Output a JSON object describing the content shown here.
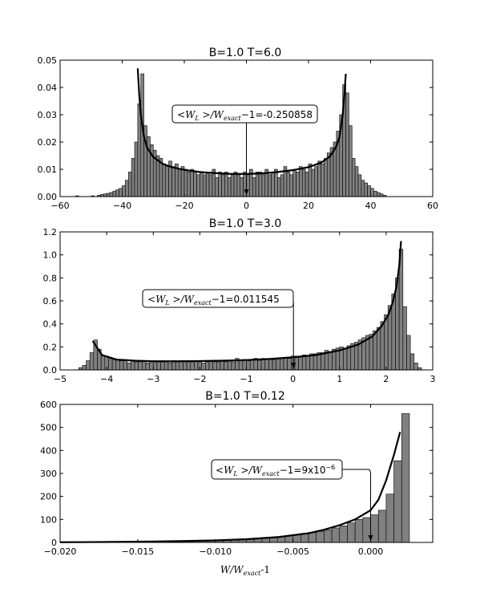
{
  "chart_data": [
    {
      "type": "bar",
      "title": "B=1.0 T=6.0",
      "xlabel": "",
      "ylabel": "",
      "xlim": [
        -60,
        60
      ],
      "ylim": [
        0,
        0.05
      ],
      "xticks": [
        "−60",
        "−40",
        "−20",
        "0",
        "20",
        "40",
        "60"
      ],
      "yticks": [
        "0.00",
        "0.01",
        "0.02",
        "0.03",
        "0.04",
        "0.05"
      ],
      "bin_width": 1.0,
      "bins": [
        [
          -55,
          0.0003
        ],
        [
          -50,
          0.0003
        ],
        [
          -48,
          0.0005
        ],
        [
          -47,
          0.0008
        ],
        [
          -46,
          0.001
        ],
        [
          -45,
          0.0012
        ],
        [
          -44,
          0.0015
        ],
        [
          -43,
          0.002
        ],
        [
          -42,
          0.0025
        ],
        [
          -41,
          0.003
        ],
        [
          -40,
          0.004
        ],
        [
          -39,
          0.006
        ],
        [
          -38,
          0.009
        ],
        [
          -37,
          0.014
        ],
        [
          -36,
          0.02
        ],
        [
          -35,
          0.034
        ],
        [
          -34,
          0.045
        ],
        [
          -33,
          0.026
        ],
        [
          -32,
          0.022
        ],
        [
          -31,
          0.019
        ],
        [
          -30,
          0.017
        ],
        [
          -29,
          0.015
        ],
        [
          -28,
          0.014
        ],
        [
          -27,
          0.012
        ],
        [
          -26,
          0.011
        ],
        [
          -25,
          0.013
        ],
        [
          -24,
          0.011
        ],
        [
          -23,
          0.012
        ],
        [
          -22,
          0.01
        ],
        [
          -21,
          0.011
        ],
        [
          -20,
          0.01
        ],
        [
          -19,
          0.009
        ],
        [
          -18,
          0.01
        ],
        [
          -17,
          0.009
        ],
        [
          -16,
          0.008
        ],
        [
          -15,
          0.009
        ],
        [
          -14,
          0.008
        ],
        [
          -13,
          0.009
        ],
        [
          -12,
          0.008
        ],
        [
          -11,
          0.01
        ],
        [
          -10,
          0.007
        ],
        [
          -9,
          0.009
        ],
        [
          -8,
          0.008
        ],
        [
          -7,
          0.009
        ],
        [
          -6,
          0.007
        ],
        [
          -5,
          0.008
        ],
        [
          -4,
          0.009
        ],
        [
          -3,
          0.008
        ],
        [
          -2,
          0.007
        ],
        [
          -1,
          0.009
        ],
        [
          0,
          0.008
        ],
        [
          1,
          0.01
        ],
        [
          2,
          0.007
        ],
        [
          3,
          0.009
        ],
        [
          4,
          0.009
        ],
        [
          5,
          0.008
        ],
        [
          6,
          0.01
        ],
        [
          7,
          0.008
        ],
        [
          8,
          0.009
        ],
        [
          9,
          0.01
        ],
        [
          10,
          0.007
        ],
        [
          11,
          0.008
        ],
        [
          12,
          0.011
        ],
        [
          13,
          0.009
        ],
        [
          14,
          0.008
        ],
        [
          15,
          0.01
        ],
        [
          16,
          0.009
        ],
        [
          17,
          0.011
        ],
        [
          18,
          0.01
        ],
        [
          19,
          0.009
        ],
        [
          20,
          0.012
        ],
        [
          21,
          0.01
        ],
        [
          22,
          0.011
        ],
        [
          23,
          0.013
        ],
        [
          24,
          0.012
        ],
        [
          25,
          0.014
        ],
        [
          26,
          0.016
        ],
        [
          27,
          0.018
        ],
        [
          28,
          0.02
        ],
        [
          29,
          0.024
        ],
        [
          30,
          0.03
        ],
        [
          31,
          0.041
        ],
        [
          32,
          0.038
        ],
        [
          33,
          0.026
        ],
        [
          34,
          0.014
        ],
        [
          35,
          0.011
        ],
        [
          36,
          0.008
        ],
        [
          37,
          0.006
        ],
        [
          38,
          0.005
        ],
        [
          39,
          0.004
        ],
        [
          40,
          0.003
        ],
        [
          41,
          0.002
        ],
        [
          42,
          0.0015
        ],
        [
          43,
          0.001
        ],
        [
          44,
          0.0005
        ]
      ],
      "curve": {
        "x": [
          -35,
          -34.5,
          -34,
          -33,
          -32,
          -30,
          -27,
          -24,
          -20,
          -15,
          -10,
          -5,
          0,
          5,
          10,
          15,
          20,
          24,
          27,
          29,
          30,
          31,
          31.6,
          32
        ],
        "y": [
          0.047,
          0.037,
          0.03,
          0.022,
          0.018,
          0.0145,
          0.012,
          0.0108,
          0.0098,
          0.009,
          0.0086,
          0.0083,
          0.0083,
          0.0085,
          0.009,
          0.0097,
          0.0108,
          0.0124,
          0.0148,
          0.0185,
          0.022,
          0.03,
          0.038,
          0.045
        ]
      },
      "annotation": {
        "prefix": "<",
        "w_l": "W",
        "w_l_sub": "L",
        "middle": " >/",
        "w_exact": "W",
        "w_exact_sub": "exact",
        "suffix": "−1=-0.250858",
        "arrow_x": 0,
        "arrow_y": 0.0
      }
    },
    {
      "type": "bar",
      "title": "B=1.0 T=3.0",
      "xlabel": "",
      "ylabel": "",
      "xlim": [
        -5,
        3
      ],
      "ylim": [
        0,
        1.2
      ],
      "xticks": [
        "−5",
        "−4",
        "−3",
        "−2",
        "−1",
        "0",
        "1",
        "2",
        "3"
      ],
      "yticks": [
        "0.0",
        "0.2",
        "0.4",
        "0.6",
        "0.8",
        "1.0",
        "1.2"
      ],
      "bin_width": 0.08,
      "bins": [
        [
          -4.6,
          0.02
        ],
        [
          -4.52,
          0.04
        ],
        [
          -4.44,
          0.08
        ],
        [
          -4.36,
          0.15
        ],
        [
          -4.28,
          0.26
        ],
        [
          -4.2,
          0.18
        ],
        [
          -4.12,
          0.12
        ],
        [
          -4.04,
          0.12
        ],
        [
          -3.96,
          0.11
        ],
        [
          -3.88,
          0.1
        ],
        [
          -3.8,
          0.09
        ],
        [
          -3.72,
          0.08
        ],
        [
          -3.64,
          0.09
        ],
        [
          -3.56,
          0.06
        ],
        [
          -3.48,
          0.08
        ],
        [
          -3.4,
          0.07
        ],
        [
          -3.32,
          0.07
        ],
        [
          -3.24,
          0.08
        ],
        [
          -3.16,
          0.06
        ],
        [
          -3.08,
          0.07
        ],
        [
          -3.0,
          0.08
        ],
        [
          -2.92,
          0.07
        ],
        [
          -2.84,
          0.08
        ],
        [
          -2.76,
          0.07
        ],
        [
          -2.68,
          0.06
        ],
        [
          -2.6,
          0.08
        ],
        [
          -2.52,
          0.07
        ],
        [
          -2.44,
          0.08
        ],
        [
          -2.36,
          0.07
        ],
        [
          -2.28,
          0.07
        ],
        [
          -2.2,
          0.07
        ],
        [
          -2.12,
          0.08
        ],
        [
          -2.04,
          0.07
        ],
        [
          -1.96,
          0.06
        ],
        [
          -1.88,
          0.07
        ],
        [
          -1.8,
          0.08
        ],
        [
          -1.72,
          0.07
        ],
        [
          -1.64,
          0.07
        ],
        [
          -1.56,
          0.08
        ],
        [
          -1.48,
          0.07
        ],
        [
          -1.4,
          0.08
        ],
        [
          -1.32,
          0.07
        ],
        [
          -1.24,
          0.1
        ],
        [
          -1.16,
          0.08
        ],
        [
          -1.08,
          0.09
        ],
        [
          -1.0,
          0.08
        ],
        [
          -0.92,
          0.09
        ],
        [
          -0.84,
          0.1
        ],
        [
          -0.76,
          0.08
        ],
        [
          -0.68,
          0.1
        ],
        [
          -0.6,
          0.09
        ],
        [
          -0.52,
          0.1
        ],
        [
          -0.44,
          0.09
        ],
        [
          -0.36,
          0.1
        ],
        [
          -0.28,
          0.1
        ],
        [
          -0.2,
          0.11
        ],
        [
          -0.12,
          0.1
        ],
        [
          -0.04,
          0.12
        ],
        [
          0.04,
          0.12
        ],
        [
          0.12,
          0.11
        ],
        [
          0.2,
          0.13
        ],
        [
          0.28,
          0.12
        ],
        [
          0.36,
          0.14
        ],
        [
          0.44,
          0.14
        ],
        [
          0.52,
          0.15
        ],
        [
          0.6,
          0.15
        ],
        [
          0.68,
          0.17
        ],
        [
          0.76,
          0.16
        ],
        [
          0.84,
          0.18
        ],
        [
          0.92,
          0.19
        ],
        [
          1.0,
          0.2
        ],
        [
          1.08,
          0.19
        ],
        [
          1.16,
          0.21
        ],
        [
          1.24,
          0.23
        ],
        [
          1.32,
          0.24
        ],
        [
          1.4,
          0.26
        ],
        [
          1.48,
          0.28
        ],
        [
          1.56,
          0.3
        ],
        [
          1.64,
          0.31
        ],
        [
          1.72,
          0.34
        ],
        [
          1.8,
          0.37
        ],
        [
          1.88,
          0.42
        ],
        [
          1.96,
          0.48
        ],
        [
          2.04,
          0.56
        ],
        [
          2.12,
          0.66
        ],
        [
          2.2,
          0.8
        ],
        [
          2.28,
          1.05
        ],
        [
          2.36,
          0.55
        ],
        [
          2.44,
          0.3
        ],
        [
          2.52,
          0.14
        ],
        [
          2.6,
          0.06
        ],
        [
          2.68,
          0.02
        ]
      ],
      "curve": {
        "x": [
          -4.3,
          -4.1,
          -3.8,
          -3.4,
          -3.0,
          -2.5,
          -2.0,
          -1.5,
          -1.0,
          -0.5,
          0.0,
          0.5,
          1.0,
          1.4,
          1.7,
          1.9,
          2.05,
          2.15,
          2.22,
          2.28,
          2.32
        ],
        "y": [
          0.25,
          0.13,
          0.09,
          0.08,
          0.075,
          0.075,
          0.077,
          0.08,
          0.086,
          0.095,
          0.11,
          0.13,
          0.17,
          0.22,
          0.29,
          0.38,
          0.48,
          0.6,
          0.72,
          0.9,
          1.12
        ]
      },
      "annotation": {
        "prefix": "<",
        "w_l": "W",
        "w_l_sub": "L",
        "middle": " >/",
        "w_exact": "W",
        "w_exact_sub": "exact",
        "suffix": "−1=0.011545",
        "arrow_x": 0.01,
        "arrow_y": 0.0
      }
    },
    {
      "type": "bar",
      "title": "B=1.0 T=0.12",
      "xlabel": "W/Wexact-1",
      "xlabel_parts": [
        "W/W",
        "exact",
        "-1"
      ],
      "ylabel": "",
      "xlim": [
        -0.02,
        0.004
      ],
      "ylim": [
        0,
        600
      ],
      "xticks": [
        "−0.020",
        "−0.015",
        "−0.010",
        "−0.005",
        "0.000"
      ],
      "yticks": [
        "0",
        "100",
        "200",
        "300",
        "400",
        "500",
        "600"
      ],
      "bin_width": 0.0005,
      "bins": [
        [
          -0.02,
          0.3
        ],
        [
          -0.0195,
          0.4
        ],
        [
          -0.019,
          0.5
        ],
        [
          -0.0185,
          0.6
        ],
        [
          -0.018,
          0.7
        ],
        [
          -0.0175,
          0.8
        ],
        [
          -0.017,
          1
        ],
        [
          -0.0165,
          1.2
        ],
        [
          -0.016,
          1.4
        ],
        [
          -0.0155,
          1.6
        ],
        [
          -0.015,
          1.9
        ],
        [
          -0.0145,
          2.2
        ],
        [
          -0.014,
          2.6
        ],
        [
          -0.0135,
          3
        ],
        [
          -0.013,
          3.5
        ],
        [
          -0.0125,
          4
        ],
        [
          -0.012,
          4.7
        ],
        [
          -0.0115,
          5.4
        ],
        [
          -0.011,
          6.3
        ],
        [
          -0.0105,
          7.4
        ],
        [
          -0.01,
          8.5
        ],
        [
          -0.0095,
          10
        ],
        [
          -0.009,
          11.5
        ],
        [
          -0.0085,
          13
        ],
        [
          -0.008,
          15
        ],
        [
          -0.0075,
          17
        ],
        [
          -0.007,
          19
        ],
        [
          -0.0065,
          22
        ],
        [
          -0.006,
          25
        ],
        [
          -0.0055,
          29
        ],
        [
          -0.005,
          33
        ],
        [
          -0.0045,
          38
        ],
        [
          -0.004,
          44
        ],
        [
          -0.0035,
          48
        ],
        [
          -0.003,
          55
        ],
        [
          -0.0025,
          63
        ],
        [
          -0.002,
          72
        ],
        [
          -0.0015,
          85
        ],
        [
          -0.001,
          100
        ],
        [
          -0.0005,
          108
        ],
        [
          0.0,
          120
        ],
        [
          0.0005,
          140
        ],
        [
          0.001,
          210
        ],
        [
          0.0015,
          355
        ],
        [
          0.002,
          560
        ]
      ],
      "curve": {
        "x": [
          -0.02,
          -0.018,
          -0.016,
          -0.014,
          -0.012,
          -0.01,
          -0.008,
          -0.006,
          -0.004,
          -0.003,
          -0.002,
          -0.001,
          0.0,
          0.0005,
          0.001,
          0.0015,
          0.0019
        ],
        "y": [
          0.8,
          1.5,
          2.5,
          4,
          6,
          9,
          14,
          23,
          40,
          55,
          75,
          100,
          140,
          185,
          270,
          380,
          480
        ]
      },
      "annotation": {
        "prefix": "<",
        "w_l": "W",
        "w_l_sub": "L",
        "middle": " >/",
        "w_exact": "W",
        "w_exact_sub": "exact",
        "suffix_main": "−1=9x10",
        "suffix_sup": "−6",
        "arrow_x": 0.0,
        "arrow_y": 0.0
      }
    }
  ]
}
